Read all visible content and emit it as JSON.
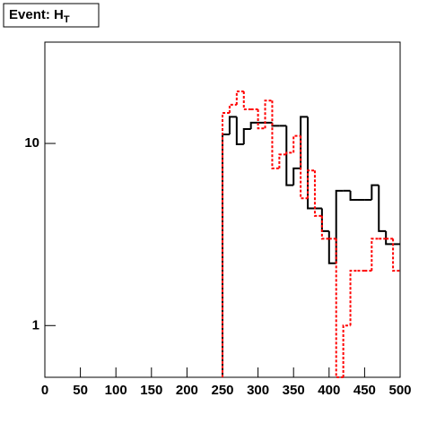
{
  "chart_data": {
    "type": "histogram",
    "title": {
      "text": "Event: H",
      "subscript": "T"
    },
    "bins": [
      250,
      260,
      270,
      280,
      290,
      300,
      310,
      320,
      330,
      340,
      350,
      360,
      370,
      380,
      390,
      400,
      410,
      420,
      430,
      440,
      450,
      460,
      470,
      480,
      490,
      500
    ],
    "series": [
      {
        "color": "#000000",
        "dash": false,
        "values": [
          11.2,
          14,
          9.9,
          12,
          13,
          13,
          13,
          12.5,
          12.5,
          5.9,
          7.3,
          14,
          4.4,
          4.4,
          3.3,
          2.2,
          5.5,
          5.5,
          4.9,
          4.9,
          4.9,
          5.9,
          3.3,
          2.8,
          2.8
        ]
      },
      {
        "color": "#ff0000",
        "dash": true,
        "values": [
          14.7,
          16.3,
          19.3,
          15.4,
          15.4,
          12.1,
          17.2,
          7.3,
          8.7,
          8.9,
          11,
          5,
          7.1,
          4,
          3,
          3,
          0,
          1,
          2,
          2,
          2,
          3,
          3,
          3,
          2
        ]
      }
    ],
    "xlim": [
      0,
      500
    ],
    "xticks": [
      0,
      50,
      100,
      150,
      200,
      250,
      300,
      350,
      400,
      450,
      500
    ],
    "ylim": [
      0.52,
      36
    ],
    "yticks": [
      1,
      10
    ],
    "ylog": true
  }
}
